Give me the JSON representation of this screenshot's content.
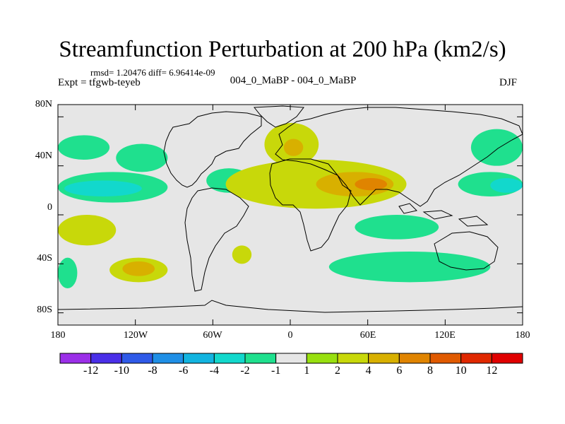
{
  "title": "Streamfunction Perturbation at 200 hPa (km2/s)",
  "stats": {
    "rmsd_text": "rmsd= 1.20476 diff= 6.96414e-09"
  },
  "experiment": {
    "left_label": "Expt = tfgwb-teyeb",
    "center_label": "004_0_MaBP - 004_0_MaBP",
    "season": "DJF"
  },
  "axes": {
    "lat_labels": [
      "80N",
      "40N",
      "0",
      "40S",
      "80S"
    ],
    "lon_labels": [
      "180",
      "120W",
      "60W",
      "0",
      "60E",
      "120E",
      "180"
    ]
  },
  "colorbar": {
    "labels": [
      "-12",
      "-10",
      "-8",
      "-6",
      "-4",
      "-2",
      "-1",
      "1",
      "2",
      "4",
      "6",
      "8",
      "10",
      "12"
    ],
    "colors": [
      "#9b2fe8",
      "#4a2fe8",
      "#2f5ae8",
      "#1f8fe6",
      "#12b4e0",
      "#12d8cc",
      "#1fe08e",
      "#e6e6e6",
      "#98e010",
      "#c8d80a",
      "#d8b000",
      "#e08400",
      "#e05a00",
      "#e02800",
      "#e00000"
    ]
  },
  "chart_data": {
    "type": "map",
    "title": "Streamfunction Perturbation at 200 hPa (km2/s)",
    "variable": "Streamfunction perturbation",
    "units": "km2/s",
    "pressure_level": "200 hPa",
    "lat_range": [
      -90,
      90
    ],
    "lon_range": [
      -180,
      180
    ],
    "contour_levels": [
      -12,
      -10,
      -8,
      -6,
      -4,
      -2,
      -1,
      1,
      2,
      4,
      6,
      8,
      10,
      12
    ],
    "features": [
      {
        "name": "N Pacific west",
        "level": -2,
        "lat_range": [
          45,
          65
        ],
        "lon_range": [
          -180,
          -140
        ]
      },
      {
        "name": "Subtropical E Pacific",
        "level": -2,
        "lat_range": [
          10,
          35
        ],
        "lon_range": [
          -180,
          -95
        ]
      },
      {
        "name": "Subtropical E Pacific core",
        "level": -4,
        "lat_range": [
          15,
          28
        ],
        "lon_range": [
          -175,
          -115
        ]
      },
      {
        "name": "NE Pacific",
        "level": -2,
        "lat_range": [
          35,
          58
        ],
        "lon_range": [
          -135,
          -95
        ]
      },
      {
        "name": "Atlantic subtropics",
        "level": -2,
        "lat_range": [
          18,
          38
        ],
        "lon_range": [
          -65,
          -30
        ]
      },
      {
        "name": "Europe / Middle East",
        "level": 2,
        "lat_range": [
          40,
          75
        ],
        "lon_range": [
          -20,
          22
        ]
      },
      {
        "name": "Europe core",
        "level": 4,
        "lat_range": [
          48,
          62
        ],
        "lon_range": [
          -5,
          10
        ]
      },
      {
        "name": "Asian subtropical jet",
        "level": 2,
        "lat_range": [
          5,
          45
        ],
        "lon_range": [
          -50,
          90
        ]
      },
      {
        "name": "Asian jet core",
        "level": 4,
        "lat_range": [
          15,
          35
        ],
        "lon_range": [
          20,
          80
        ]
      },
      {
        "name": "Asian jet max",
        "level": 6,
        "lat_range": [
          20,
          30
        ],
        "lon_range": [
          50,
          75
        ]
      },
      {
        "name": "NW Pacific high lat",
        "level": -2,
        "lat_range": [
          40,
          70
        ],
        "lon_range": [
          140,
          180
        ]
      },
      {
        "name": "W Pacific subtropics",
        "level": -2,
        "lat_range": [
          15,
          35
        ],
        "lon_range": [
          130,
          180
        ]
      },
      {
        "name": "W Pacific subtropics core",
        "level": -4,
        "lat_range": [
          18,
          30
        ],
        "lon_range": [
          155,
          180
        ]
      },
      {
        "name": "Indian Ocean south",
        "level": -2,
        "lat_range": [
          -20,
          0
        ],
        "lon_range": [
          50,
          115
        ]
      },
      {
        "name": "SE Pacific",
        "level": 2,
        "lat_range": [
          -25,
          0
        ],
        "lon_range": [
          -180,
          -135
        ]
      },
      {
        "name": "S Pacific",
        "level": 2,
        "lat_range": [
          -55,
          -35
        ],
        "lon_range": [
          -140,
          -95
        ]
      },
      {
        "name": "S Pacific core",
        "level": 4,
        "lat_range": [
          -50,
          -38
        ],
        "lon_range": [
          -130,
          -105
        ]
      },
      {
        "name": "S Indian / Australia",
        "level": -2,
        "lat_range": [
          -55,
          -30
        ],
        "lon_range": [
          30,
          155
        ]
      },
      {
        "name": "SW Pacific",
        "level": -2,
        "lat_range": [
          -60,
          -35
        ],
        "lon_range": [
          -180,
          -165
        ]
      },
      {
        "name": "S Atlantic",
        "level": 2,
        "lat_range": [
          -40,
          -25
        ],
        "lon_range": [
          -45,
          -30
        ]
      }
    ]
  }
}
